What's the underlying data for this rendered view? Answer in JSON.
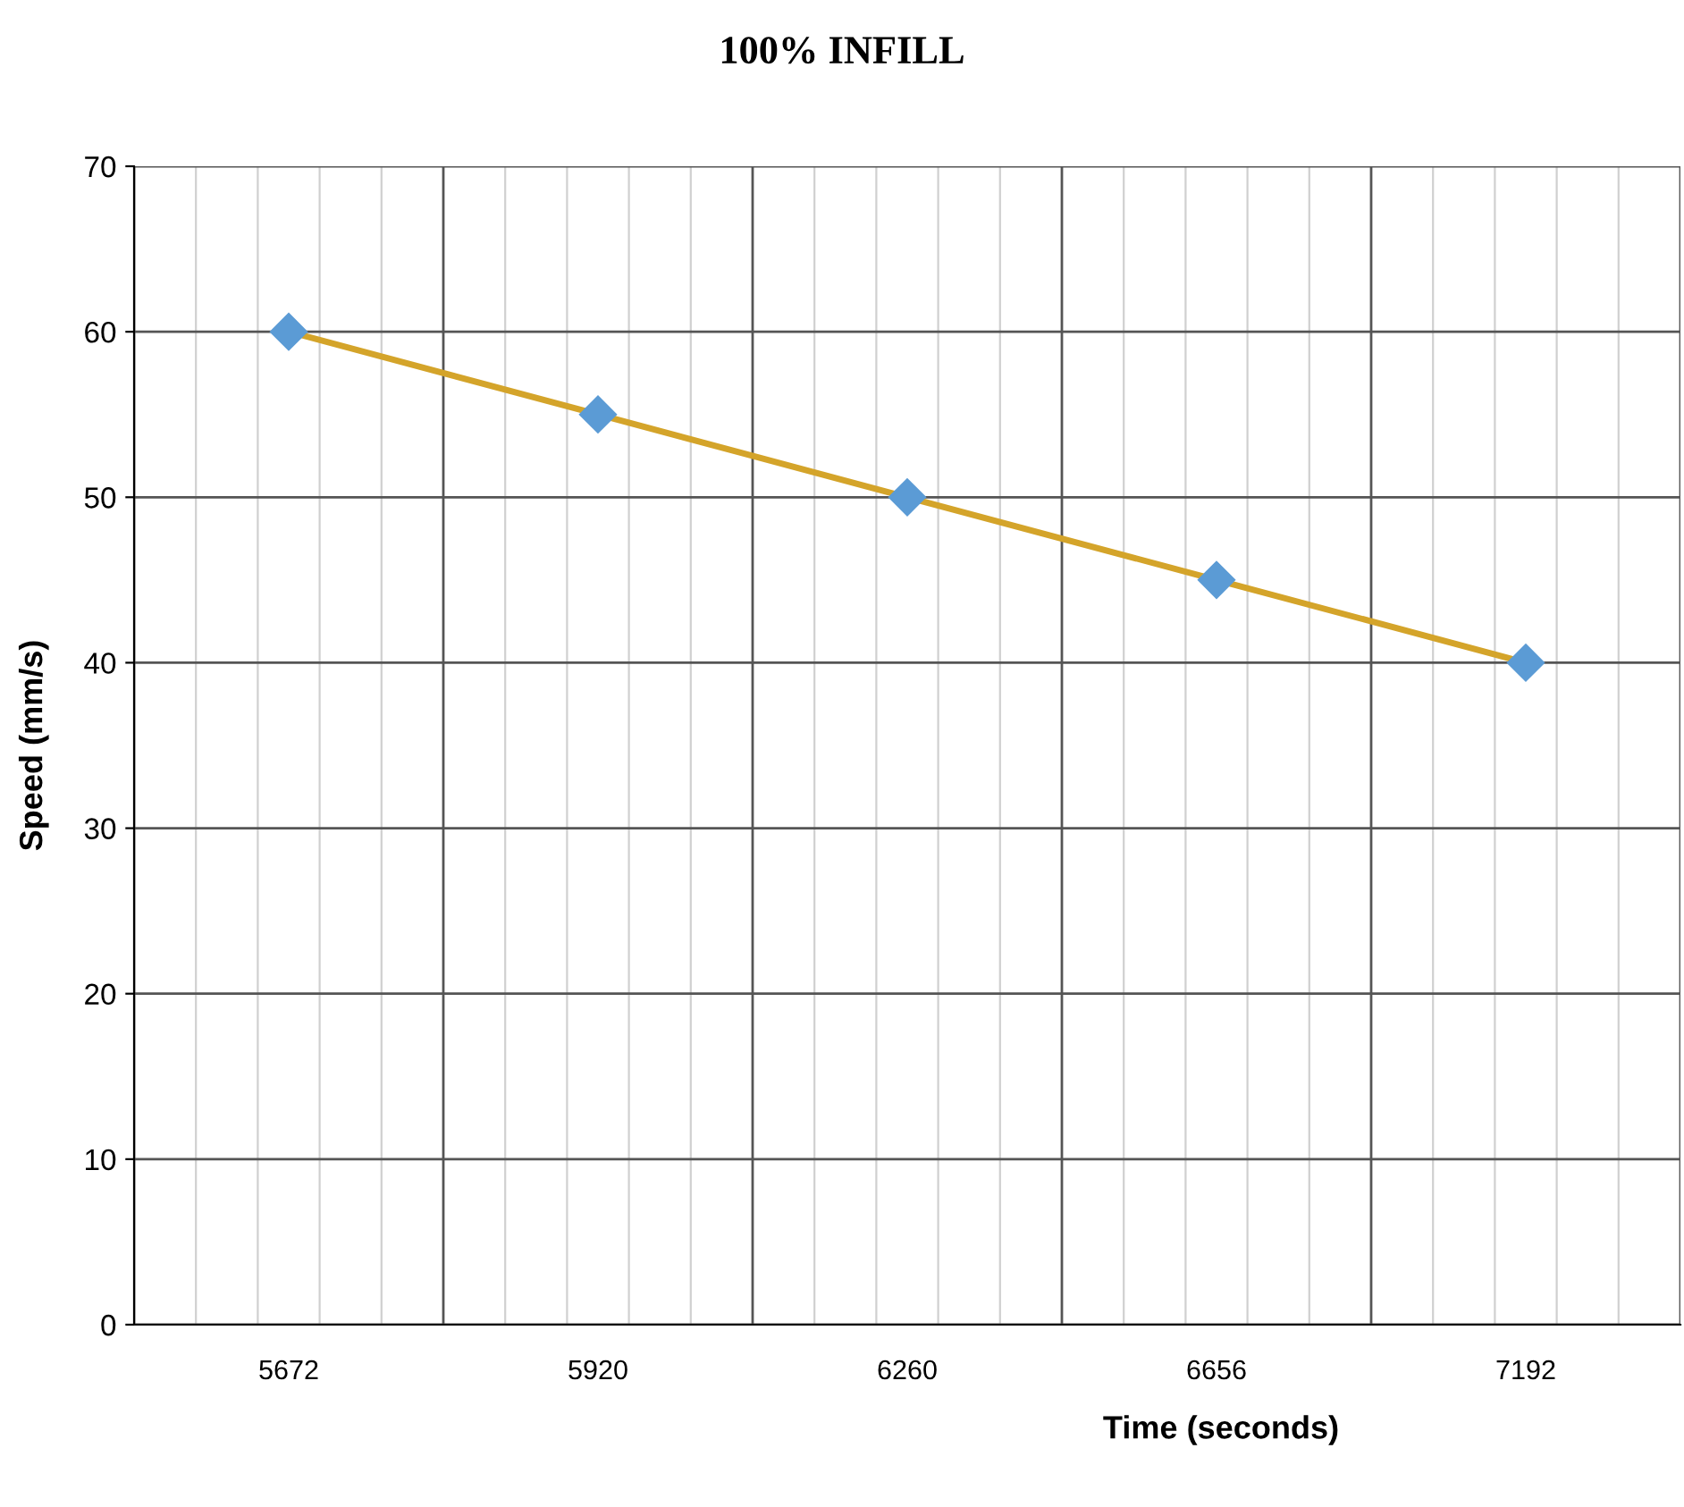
{
  "chart_data": {
    "type": "line",
    "title": "100% INFILL",
    "xlabel": "Time (seconds)",
    "ylabel": "Speed (mm/s)",
    "categories": [
      "5672",
      "5920",
      "6260",
      "6656",
      "7192"
    ],
    "series": [
      {
        "color": "#d4a42a",
        "colors": [
          "#5b9bd5",
          "#5b9bd5",
          "#5b9bd5",
          "#5b9bd5",
          "#5b9bd5"
        ],
        "values": [
          60,
          55,
          50,
          45,
          40
        ]
      }
    ],
    "ylim": [
      0,
      70
    ],
    "yticks": [
      0,
      10,
      20,
      30,
      40,
      50,
      60,
      70
    ],
    "grid": true,
    "marker": "diamond",
    "line_style": "solid"
  }
}
